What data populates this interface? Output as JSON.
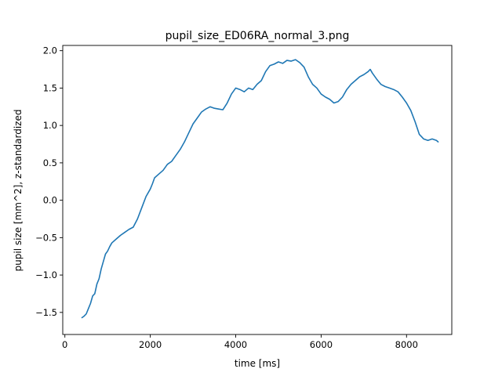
{
  "chart_data": {
    "type": "line",
    "title": "pupil_size_ED06RA_normal_3.png",
    "xlabel": "time [ms]",
    "ylabel": "pupil size [mm^2], z-standardized",
    "xlim": [
      -50,
      9060
    ],
    "ylim": [
      -1.795,
      2.07
    ],
    "xticks": [
      0,
      2000,
      4000,
      6000,
      8000
    ],
    "xtick_labels": [
      "0",
      "2000",
      "4000",
      "6000",
      "8000"
    ],
    "yticks": [
      -1.5,
      -1.0,
      -0.5,
      0.0,
      0.5,
      1.0,
      1.5,
      2.0
    ],
    "ytick_labels": [
      "−1.5",
      "−1.0",
      "−0.5",
      "0.0",
      "0.5",
      "1.0",
      "1.5",
      "2.0"
    ],
    "grid": false,
    "series": [
      {
        "color": "#1f77b4",
        "x": [
          400,
          450,
          500,
          550,
          600,
          650,
          700,
          750,
          800,
          850,
          900,
          950,
          1000,
          1050,
          1100,
          1200,
          1300,
          1400,
          1500,
          1600,
          1700,
          1800,
          1900,
          2000,
          2050,
          2100,
          2200,
          2300,
          2400,
          2500,
          2600,
          2700,
          2800,
          2900,
          3000,
          3100,
          3200,
          3300,
          3400,
          3500,
          3600,
          3700,
          3800,
          3900,
          4000,
          4100,
          4200,
          4300,
          4400,
          4500,
          4600,
          4700,
          4800,
          4900,
          5000,
          5100,
          5200,
          5300,
          5400,
          5500,
          5600,
          5700,
          5800,
          5900,
          6000,
          6100,
          6200,
          6300,
          6400,
          6500,
          6600,
          6700,
          6800,
          6900,
          7000,
          7100,
          7150,
          7200,
          7300,
          7400,
          7500,
          7600,
          7700,
          7800,
          7900,
          8000,
          8100,
          8200,
          8300,
          8400,
          8500,
          8600,
          8700,
          8740
        ],
        "y": [
          -1.57,
          -1.55,
          -1.52,
          -1.45,
          -1.38,
          -1.28,
          -1.25,
          -1.12,
          -1.05,
          -0.92,
          -0.82,
          -0.72,
          -0.68,
          -0.62,
          -0.57,
          -0.52,
          -0.47,
          -0.43,
          -0.39,
          -0.36,
          -0.25,
          -0.1,
          0.05,
          0.15,
          0.22,
          0.3,
          0.35,
          0.4,
          0.48,
          0.52,
          0.6,
          0.68,
          0.78,
          0.9,
          1.02,
          1.1,
          1.18,
          1.22,
          1.25,
          1.23,
          1.22,
          1.21,
          1.3,
          1.42,
          1.5,
          1.48,
          1.45,
          1.5,
          1.48,
          1.55,
          1.6,
          1.72,
          1.8,
          1.82,
          1.85,
          1.83,
          1.87,
          1.86,
          1.88,
          1.84,
          1.78,
          1.65,
          1.55,
          1.5,
          1.42,
          1.38,
          1.35,
          1.3,
          1.32,
          1.38,
          1.48,
          1.55,
          1.6,
          1.65,
          1.68,
          1.72,
          1.75,
          1.7,
          1.62,
          1.55,
          1.52,
          1.5,
          1.48,
          1.45,
          1.38,
          1.3,
          1.2,
          1.05,
          0.88,
          0.82,
          0.8,
          0.82,
          0.8,
          0.78
        ]
      }
    ]
  }
}
